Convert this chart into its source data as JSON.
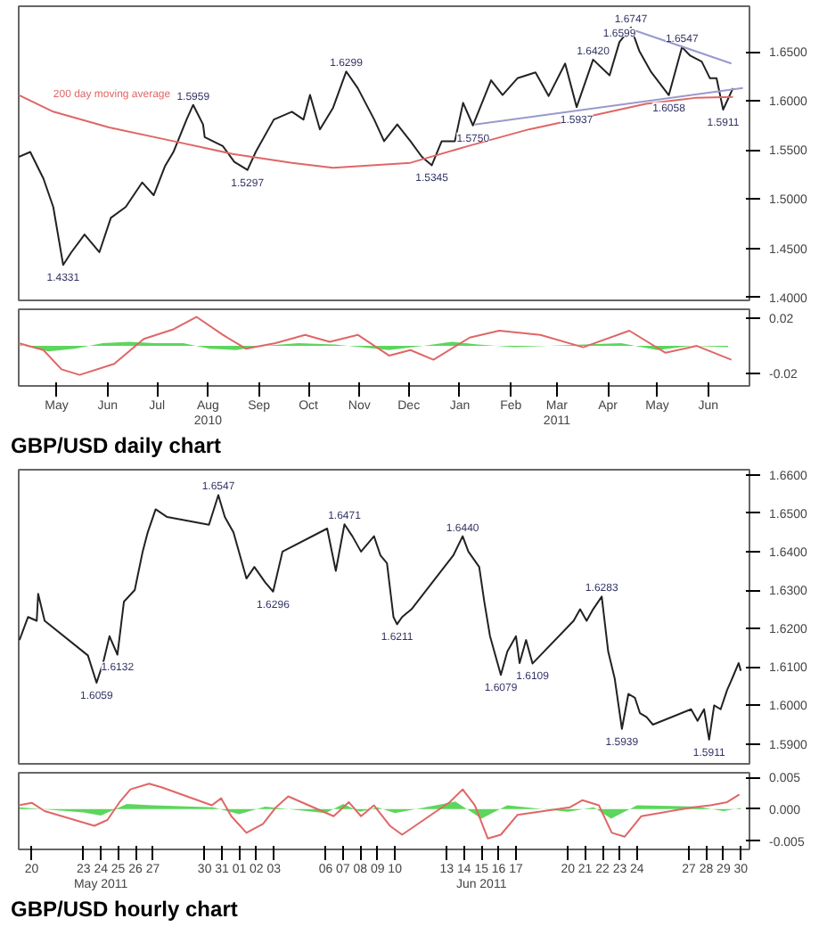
{
  "chart_data": [
    {
      "type": "line",
      "xlim": [
        "2010-04-22",
        "2011-07-10"
      ],
      "ylim": [
        1.397,
        1.6963
      ],
      "yticks": [
        {
          "value": 1.4,
          "label": "1.4000"
        },
        {
          "value": 1.45,
          "label": "1.4500"
        },
        {
          "value": 1.5,
          "label": "1.5000"
        },
        {
          "value": 1.55,
          "label": "1.5500"
        },
        {
          "value": 1.6,
          "label": "1.6000"
        },
        {
          "value": 1.65,
          "label": "1.6500"
        }
      ],
      "tick_labels": "y",
      "grid": false,
      "legend": false,
      "series": [
        {
          "color": "#222222",
          "x": [
            "2010-04-22",
            "2010-04-29",
            "2010-05-07",
            "2010-05-13",
            "2010-05-19",
            "2010-05-24",
            "2010-06-01",
            "2010-06-10",
            "2010-06-17",
            "2010-06-26",
            "2010-07-06",
            "2010-07-13",
            "2010-07-20",
            "2010-07-25",
            "2010-08-02",
            "2010-08-06",
            "2010-08-12",
            "2010-08-13",
            "2010-08-24",
            "2010-08-31",
            "2010-09-08",
            "2010-09-13",
            "2010-09-24",
            "2010-10-05",
            "2010-10-12",
            "2010-10-16",
            "2010-10-22",
            "2010-10-30",
            "2010-11-07",
            "2010-11-14",
            "2010-11-24",
            "2010-11-30",
            "2010-12-08",
            "2010-12-16",
            "2010-12-23",
            "2010-12-29",
            "2011-01-04",
            "2011-01-12",
            "2011-01-17",
            "2011-01-23",
            "2011-02-03",
            "2011-02-10",
            "2011-02-19",
            "2011-03-02",
            "2011-03-10",
            "2011-03-20",
            "2011-03-27",
            "2011-04-06",
            "2011-04-16",
            "2011-04-22",
            "2011-04-29",
            "2011-05-04",
            "2011-05-11",
            "2011-05-22",
            "2011-05-30",
            "2011-06-04",
            "2011-06-11",
            "2011-06-16",
            "2011-06-20",
            "2011-06-24",
            "2011-06-30"
          ],
          "values": [
            1.543,
            1.548,
            1.521,
            1.492,
            1.4331,
            1.446,
            1.464,
            1.446,
            1.481,
            1.492,
            1.517,
            1.504,
            1.534,
            1.548,
            1.581,
            1.5959,
            1.576,
            1.563,
            1.554,
            1.538,
            1.5297,
            1.548,
            1.581,
            1.589,
            1.581,
            1.606,
            1.571,
            1.593,
            1.6299,
            1.613,
            1.581,
            1.559,
            1.576,
            1.559,
            1.543,
            1.5345,
            1.559,
            1.559,
            1.598,
            1.575,
            1.621,
            1.606,
            1.623,
            1.629,
            1.605,
            1.638,
            1.5937,
            1.642,
            1.626,
            1.6599,
            1.6747,
            1.651,
            1.63,
            1.6058,
            1.6547,
            1.646,
            1.64,
            1.623,
            1.623,
            1.5911,
            1.613
          ]
        },
        {
          "name": "200 day moving average",
          "color": "#e06666",
          "x": [
            "2010-04-22",
            "2010-05-13",
            "2010-06-16",
            "2010-07-25",
            "2010-08-30",
            "2010-10-05",
            "2010-10-30",
            "2010-12-16",
            "2011-01-20",
            "2011-02-26",
            "2011-04-03",
            "2011-05-08",
            "2011-06-07",
            "2011-06-30"
          ],
          "values": [
            1.606,
            1.589,
            1.573,
            1.559,
            1.546,
            1.537,
            1.532,
            1.537,
            1.554,
            1.571,
            1.584,
            1.597,
            1.603,
            1.604
          ]
        },
        {
          "color": "#9999cc",
          "x": [
            "2011-01-24",
            "2011-07-06"
          ],
          "values": [
            1.576,
            1.613
          ]
        },
        {
          "color": "#9999cc",
          "x": [
            "2011-04-29",
            "2011-06-29"
          ],
          "values": [
            1.673,
            1.638
          ]
        }
      ],
      "annotations": [
        {
          "text": "1.4331",
          "x": "2010-05-19",
          "y": 1.4331
        },
        {
          "text": "1.5959",
          "x": "2010-08-06",
          "y": 1.5959
        },
        {
          "text": "1.5297",
          "x": "2010-09-08",
          "y": 1.5297
        },
        {
          "text": "1.6299",
          "x": "2010-11-07",
          "y": 1.6299
        },
        {
          "text": "1.5345",
          "x": "2010-12-29",
          "y": 1.5345
        },
        {
          "text": "1.5750",
          "x": "2011-01-23",
          "y": 1.575
        },
        {
          "text": "1.5937",
          "x": "2011-03-27",
          "y": 1.5937
        },
        {
          "text": "1.6420",
          "x": "2011-04-06",
          "y": 1.642
        },
        {
          "text": "1.6599",
          "x": "2011-04-22",
          "y": 1.6599
        },
        {
          "text": "1.6747",
          "x": "2011-04-29",
          "y": 1.6747
        },
        {
          "text": "1.6058",
          "x": "2011-05-22",
          "y": 1.6058
        },
        {
          "text": "1.6547",
          "x": "2011-05-30",
          "y": 1.6547
        },
        {
          "text": "1.5911",
          "x": "2011-06-24",
          "y": 1.5911
        }
      ]
    },
    {
      "type": "line",
      "xlim": [
        "2010-04-22",
        "2011-07-10"
      ],
      "ylim": [
        -0.029,
        0.0265
      ],
      "yticks": [
        {
          "value": 0.02,
          "label": "0.02"
        },
        {
          "value": -0.02,
          "label": "-0.02"
        }
      ],
      "xticks": [
        {
          "value": "2010-05-15",
          "label": "May"
        },
        {
          "value": "2010-06-15",
          "label": "Jun"
        },
        {
          "value": "2010-07-15",
          "label": "Jul"
        },
        {
          "value": "2010-08-15",
          "label": "Aug\n2010"
        },
        {
          "value": "2010-09-15",
          "label": "Sep"
        },
        {
          "value": "2010-10-15",
          "label": "Oct"
        },
        {
          "value": "2010-11-15",
          "label": "Nov"
        },
        {
          "value": "2010-12-15",
          "label": "Dec"
        },
        {
          "value": "2011-01-15",
          "label": "Jan"
        },
        {
          "value": "2011-02-15",
          "label": "Feb"
        },
        {
          "value": "2011-03-15",
          "label": "Mar\n2011"
        },
        {
          "value": "2011-04-15",
          "label": "Apr"
        },
        {
          "value": "2011-05-15",
          "label": "May"
        },
        {
          "value": "2011-06-15",
          "label": "Jun"
        }
      ],
      "grid": false,
      "legend": false,
      "series": [
        {
          "type": "area",
          "color": "#33cc33",
          "x": [
            "2010-04-22",
            "2010-05-10",
            "2010-05-26",
            "2010-06-12",
            "2010-06-28",
            "2010-07-14",
            "2010-07-31",
            "2010-08-16",
            "2010-09-01",
            "2010-09-18",
            "2010-10-09",
            "2010-10-31",
            "2010-11-16",
            "2010-12-03",
            "2010-12-24",
            "2011-01-10",
            "2011-01-26",
            "2011-02-17",
            "2011-03-10",
            "2011-04-01",
            "2011-04-23",
            "2011-05-15",
            "2011-06-05",
            "2011-06-27"
          ],
          "values": [
            0.001,
            -0.004,
            -0.002,
            0.002,
            0.003,
            0.002,
            0.002,
            -0.002,
            -0.003,
            0.0,
            0.002,
            0.001,
            -0.001,
            -0.003,
            0.0,
            0.003,
            0.001,
            -0.001,
            0.0,
            0.001,
            0.002,
            -0.003,
            0.0,
            -0.001
          ]
        },
        {
          "color": "#e06666",
          "x": [
            "2010-04-22",
            "2010-05-07",
            "2010-05-18",
            "2010-05-29",
            "2010-06-19",
            "2010-07-07",
            "2010-07-25",
            "2010-08-08",
            "2010-08-24",
            "2010-09-07",
            "2010-09-25",
            "2010-10-13",
            "2010-10-28",
            "2010-11-14",
            "2010-12-03",
            "2010-12-16",
            "2010-12-30",
            "2011-01-21",
            "2011-02-08",
            "2011-03-05",
            "2011-03-31",
            "2011-04-28",
            "2011-05-20",
            "2011-06-08",
            "2011-06-29"
          ],
          "values": [
            0.002,
            -0.003,
            -0.017,
            -0.021,
            -0.013,
            0.005,
            0.012,
            0.021,
            0.008,
            -0.002,
            0.002,
            0.008,
            0.003,
            0.008,
            -0.007,
            -0.003,
            -0.01,
            0.006,
            0.011,
            0.008,
            -0.001,
            0.011,
            -0.005,
            0.0,
            -0.01
          ]
        }
      ],
      "annotations": [
        "GBP/USD daily chart"
      ]
    },
    {
      "type": "line",
      "xlim": [
        "2011-05-19T06:00",
        "2011-06-30T12:00"
      ],
      "ylim": [
        1.5848,
        1.6613
      ],
      "yticks": [
        {
          "value": 1.59,
          "label": "1.5900"
        },
        {
          "value": 1.6,
          "label": "1.6000"
        },
        {
          "value": 1.61,
          "label": "1.6100"
        },
        {
          "value": 1.62,
          "label": "1.6200"
        },
        {
          "value": 1.63,
          "label": "1.6300"
        },
        {
          "value": 1.64,
          "label": "1.6400"
        },
        {
          "value": 1.65,
          "label": "1.6500"
        },
        {
          "value": 1.66,
          "label": "1.6600"
        }
      ],
      "tick_labels": "y",
      "grid": false,
      "legend": false,
      "series": [
        {
          "color": "#222222",
          "x": [
            "2011-05-19T07:00",
            "2011-05-19T19:00",
            "2011-05-20T07:00",
            "2011-05-20T09:00",
            "2011-05-20T18:00",
            "2011-05-23T06:00",
            "2011-05-23T18:00",
            "2011-05-24T03:00",
            "2011-05-24T12:00",
            "2011-05-24T23:00",
            "2011-05-25T08:00",
            "2011-05-25T23:00",
            "2011-05-26T10:00",
            "2011-05-26T17:00",
            "2011-05-27T04:00",
            "2011-05-27T20:00",
            "2011-05-30T06:00",
            "2011-05-30T19:00",
            "2011-05-31T04:00",
            "2011-05-31T16:00",
            "2011-06-01T10:00",
            "2011-06-01T21:00",
            "2011-06-02T12:00",
            "2011-06-02T23:00",
            "2011-06-03T12:00",
            "2011-06-06T02:00",
            "2011-06-06T14:00",
            "2011-06-07T02:00",
            "2011-06-07T13:00",
            "2011-06-08T01:00",
            "2011-06-08T19:00",
            "2011-06-09T04:00",
            "2011-06-09T13:00",
            "2011-06-09T22:00",
            "2011-06-10T03:00",
            "2011-06-10T10:00",
            "2011-06-10T23:00",
            "2011-06-13T09:00",
            "2011-06-13T22:00",
            "2011-06-14T06:00",
            "2011-06-14T21:00",
            "2011-06-15T04:00",
            "2011-06-15T12:00",
            "2011-06-16T03:00",
            "2011-06-16T12:00",
            "2011-06-17T00:00",
            "2011-06-17T05:00",
            "2011-06-17T14:00",
            "2011-06-17T23:00",
            "2011-06-20T08:00",
            "2011-06-20T17:00",
            "2011-06-21T02:00",
            "2011-06-21T11:00",
            "2011-06-21T23:00",
            "2011-06-22T08:00",
            "2011-06-22T17:00",
            "2011-06-23T03:00",
            "2011-06-23T12:00",
            "2011-06-23T21:00",
            "2011-06-24T04:00",
            "2011-06-24T13:00",
            "2011-06-24T22:00",
            "2011-06-27T03:00",
            "2011-06-27T12:00",
            "2011-06-27T21:00",
            "2011-06-28T04:00",
            "2011-06-28T11:00",
            "2011-06-28T20:00",
            "2011-06-29T05:00",
            "2011-06-29T12:00",
            "2011-06-29T21:00",
            "2011-06-30T00:00"
          ],
          "values": [
            1.617,
            1.623,
            1.622,
            1.629,
            1.622,
            1.613,
            1.6059,
            1.611,
            1.618,
            1.6132,
            1.627,
            1.63,
            1.64,
            1.645,
            1.651,
            1.649,
            1.647,
            1.6547,
            1.649,
            1.645,
            1.633,
            1.636,
            1.632,
            1.6296,
            1.64,
            1.646,
            1.635,
            1.6471,
            1.644,
            1.64,
            1.644,
            1.639,
            1.637,
            1.623,
            1.6211,
            1.623,
            1.625,
            1.639,
            1.644,
            1.64,
            1.636,
            1.627,
            1.618,
            1.6079,
            1.614,
            1.618,
            1.611,
            1.617,
            1.6109,
            1.622,
            1.625,
            1.622,
            1.625,
            1.6283,
            1.614,
            1.607,
            1.5939,
            1.603,
            1.602,
            1.598,
            1.597,
            1.595,
            1.599,
            1.596,
            1.599,
            1.5911,
            1.6,
            1.599,
            1.604,
            1.607,
            1.611,
            1.609
          ]
        }
      ],
      "annotations": [
        {
          "text": "1.6059",
          "x": "2011-05-23T18:00",
          "y": 1.6059
        },
        {
          "text": "1.6132",
          "x": "2011-05-24T23:00",
          "y": 1.6132
        },
        {
          "text": "1.6547",
          "x": "2011-05-30T19:00",
          "y": 1.6547
        },
        {
          "text": "1.6296",
          "x": "2011-06-02T23:00",
          "y": 1.6296
        },
        {
          "text": "1.6471",
          "x": "2011-06-07T02:00",
          "y": 1.6471
        },
        {
          "text": "1.6211",
          "x": "2011-06-10T03:00",
          "y": 1.6211
        },
        {
          "text": "1.6440",
          "x": "2011-06-13T22:00",
          "y": 1.644
        },
        {
          "text": "1.6079",
          "x": "2011-06-16T03:00",
          "y": 1.6079
        },
        {
          "text": "1.6109",
          "x": "2011-06-17T23:00",
          "y": 1.6109
        },
        {
          "text": "1.6283",
          "x": "2011-06-21T23:00",
          "y": 1.6283
        },
        {
          "text": "1.5939",
          "x": "2011-06-23T03:00",
          "y": 1.5939
        },
        {
          "text": "1.5911",
          "x": "2011-06-28T04:00",
          "y": 1.5911
        }
      ]
    },
    {
      "type": "line",
      "xlim": [
        "2011-05-19T06:00",
        "2011-06-30T12:00"
      ],
      "ylim": [
        -0.0063,
        0.0057
      ],
      "yticks": [
        {
          "value": 0.005,
          "label": "0.005"
        },
        {
          "value": 0,
          "label": "0.000"
        },
        {
          "value": -0.005,
          "label": "-0.005"
        }
      ],
      "xticks": [
        {
          "value": "2011-05-20",
          "label": "20"
        },
        {
          "value": "2011-05-23",
          "label": "23"
        },
        {
          "value": "2011-05-24",
          "label": "24\nMay 2011"
        },
        {
          "value": "2011-05-25",
          "label": "25"
        },
        {
          "value": "2011-05-26",
          "label": "26"
        },
        {
          "value": "2011-05-27",
          "label": "27"
        },
        {
          "value": "2011-05-30",
          "label": "30"
        },
        {
          "value": "2011-05-31",
          "label": "31"
        },
        {
          "value": "2011-06-01",
          "label": "01"
        },
        {
          "value": "2011-06-02",
          "label": "02"
        },
        {
          "value": "2011-06-03",
          "label": "03"
        },
        {
          "value": "2011-06-06",
          "label": "06"
        },
        {
          "value": "2011-06-07",
          "label": "07"
        },
        {
          "value": "2011-06-08",
          "label": "08"
        },
        {
          "value": "2011-06-09",
          "label": "09"
        },
        {
          "value": "2011-06-10",
          "label": "10"
        },
        {
          "value": "2011-06-13",
          "label": "13"
        },
        {
          "value": "2011-06-14",
          "label": "14"
        },
        {
          "value": "2011-06-15",
          "label": "15\nJun 2011"
        },
        {
          "value": "2011-06-16",
          "label": "16"
        },
        {
          "value": "2011-06-17",
          "label": "17"
        },
        {
          "value": "2011-06-20",
          "label": "20"
        },
        {
          "value": "2011-06-21",
          "label": "21"
        },
        {
          "value": "2011-06-22",
          "label": "22"
        },
        {
          "value": "2011-06-23",
          "label": "23"
        },
        {
          "value": "2011-06-24",
          "label": "24"
        },
        {
          "value": "2011-06-27",
          "label": "27"
        },
        {
          "value": "2011-06-28",
          "label": "28"
        },
        {
          "value": "2011-06-29",
          "label": "29"
        },
        {
          "value": "2011-06-30",
          "label": "30"
        }
      ],
      "grid": false,
      "legend": false,
      "series": [
        {
          "type": "area",
          "color": "#33cc33",
          "x": [
            "2011-05-19T07:00",
            "2011-05-23T00:00",
            "2011-05-24T00:00",
            "2011-05-25T12:00",
            "2011-05-27T00:00",
            "2011-05-30T12:00",
            "2011-06-01T00:00",
            "2011-06-02T12:00",
            "2011-06-06T00:00",
            "2011-06-07T00:00",
            "2011-06-08T00:00",
            "2011-06-09T00:00",
            "2011-06-10T00:00",
            "2011-06-13T12:00",
            "2011-06-15T00:00",
            "2011-06-16T12:00",
            "2011-06-20T00:00",
            "2011-06-21T12:00",
            "2011-06-22T12:00",
            "2011-06-24T00:00",
            "2011-06-27T12:00",
            "2011-06-29T00:00",
            "2011-06-30T00:00"
          ],
          "values": [
            0.0003,
            -0.0005,
            -0.001,
            0.0008,
            0.0006,
            0.0003,
            -0.0008,
            0.0004,
            -0.0006,
            0.0008,
            -0.0004,
            0.0003,
            -0.0006,
            0.0012,
            -0.0015,
            0.0006,
            -0.0004,
            0.0003,
            -0.0015,
            0.0006,
            0.0004,
            -0.0003,
            0.0002
          ]
        },
        {
          "color": "#e06666",
          "x": [
            "2011-05-19T06:00",
            "2011-05-20T00:00",
            "2011-05-20T18:00",
            "2011-05-23T15:00",
            "2011-05-24T09:00",
            "2011-05-25T02:00",
            "2011-05-25T17:00",
            "2011-05-26T19:00",
            "2011-05-27T13:00",
            "2011-05-30T10:00",
            "2011-05-30T23:00",
            "2011-05-31T13:00",
            "2011-06-01T10:00",
            "2011-06-02T09:00",
            "2011-06-03T03:00",
            "2011-06-03T20:00",
            "2011-06-06T11:00",
            "2011-06-07T08:00",
            "2011-06-08T01:00",
            "2011-06-08T19:00",
            "2011-06-09T17:00",
            "2011-06-10T10:00",
            "2011-06-13T04:00",
            "2011-06-13T22:00",
            "2011-06-14T15:00",
            "2011-06-15T09:00",
            "2011-06-16T03:00",
            "2011-06-17T02:00",
            "2011-06-20T03:00",
            "2011-06-20T20:00",
            "2011-06-21T19:00",
            "2011-06-22T13:00",
            "2011-06-23T07:00",
            "2011-06-24T06:00",
            "2011-06-27T06:00",
            "2011-06-28T06:00",
            "2011-06-29T05:00",
            "2011-06-29T22:00"
          ],
          "values": [
            0.0006,
            0.001,
            -0.0003,
            -0.0026,
            -0.0017,
            0.0011,
            0.0031,
            0.004,
            0.0034,
            0.0006,
            0.0017,
            -0.0011,
            -0.0037,
            -0.0023,
            0.0003,
            0.002,
            -0.0011,
            0.0011,
            -0.0011,
            0.0006,
            -0.0026,
            -0.004,
            0.0011,
            0.0031,
            0.0006,
            -0.0046,
            -0.004,
            -0.0009,
            0.0003,
            0.0014,
            0.0006,
            -0.0037,
            -0.0043,
            -0.0011,
            0.0003,
            0.0006,
            0.0011,
            0.0023
          ]
        }
      ],
      "annotations": [
        "GBP/USD hourly chart"
      ]
    }
  ]
}
